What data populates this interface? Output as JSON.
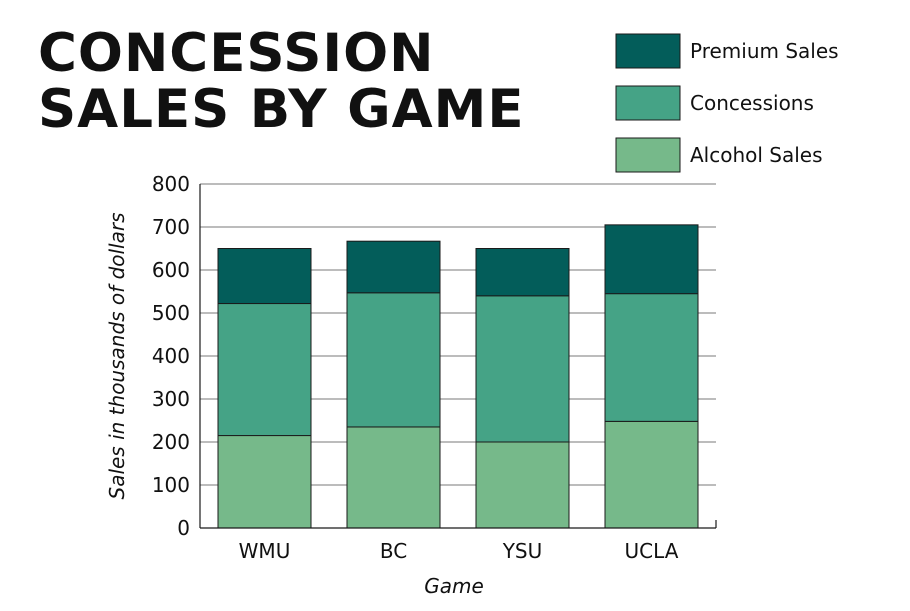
{
  "chart_data": {
    "type": "bar",
    "stacked": true,
    "title_lines": [
      "CONCESSION",
      "SALES BY GAME"
    ],
    "xlabel": "Game",
    "ylabel": "Sales in thousands of dollars",
    "categories": [
      "WMU",
      "BC",
      "YSU",
      "UCLA"
    ],
    "ylim": [
      0,
      800
    ],
    "yticks": [
      0,
      100,
      200,
      300,
      400,
      500,
      600,
      700,
      800
    ],
    "grid": true,
    "legend_position": "top-right",
    "series": [
      {
        "name": "Alcohol Sales",
        "color": "#76b98a",
        "values": [
          215,
          235,
          200,
          248
        ]
      },
      {
        "name": "Concessions",
        "color": "#45a386",
        "values": [
          307,
          312,
          340,
          297
        ]
      },
      {
        "name": "Premium Sales",
        "color": "#035d5a",
        "values": [
          128,
          120,
          110,
          160
        ]
      }
    ],
    "legend_order": [
      "Premium Sales",
      "Concessions",
      "Alcohol Sales"
    ]
  }
}
